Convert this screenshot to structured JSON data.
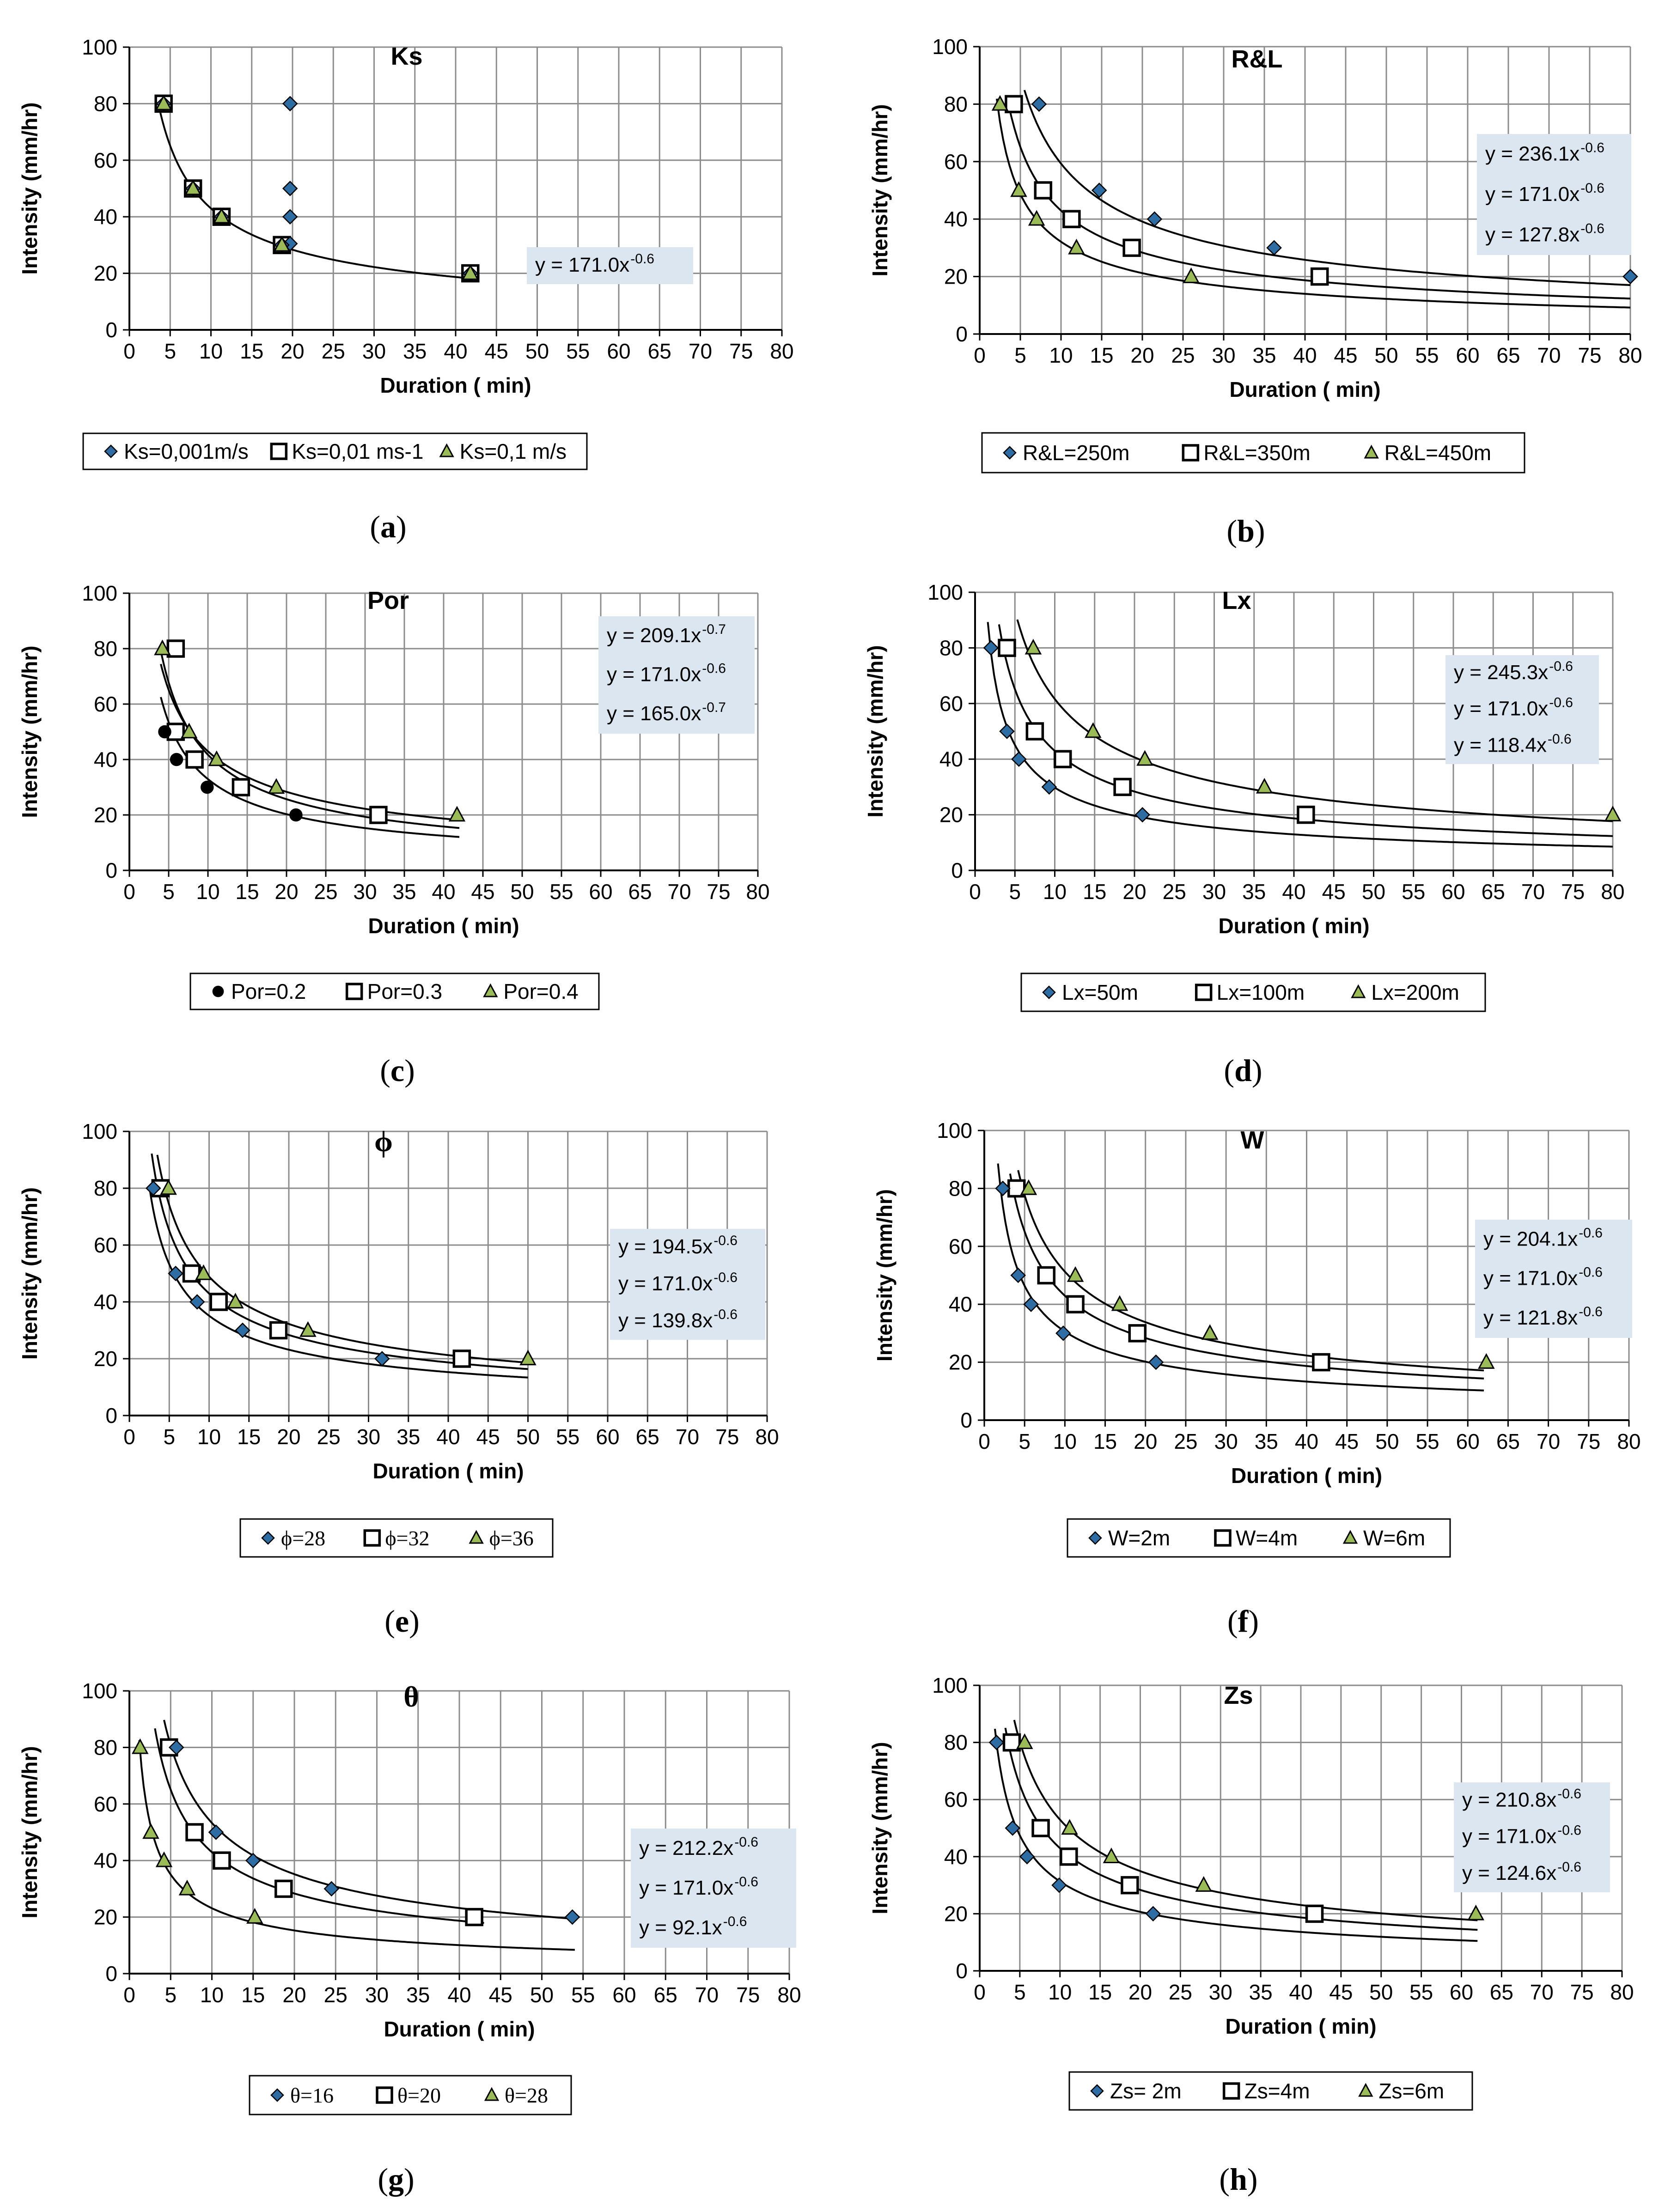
{
  "figure": {
    "background": "#ffffff",
    "grid_color": "#8c8c8c",
    "axis_color": "#000000",
    "fit_color": "#000000",
    "eq_box_color": "#dce6f1",
    "marker_blue": "#2e6da4",
    "marker_green": "#9bbb59"
  },
  "chart_data": [
    {
      "id": "a",
      "type": "scatter",
      "panel_label": "a",
      "title": "Ks",
      "xlabel": "Duration ( min)",
      "ylabel": "Intensity (mm/hr)",
      "xlim": [
        0,
        80
      ],
      "ylim": [
        0,
        100
      ],
      "xstep": 5,
      "ystep": 20,
      "grid": true,
      "legend_position": "bottom",
      "series": [
        {
          "name": "Ks=0,001m/s",
          "marker": "diamond",
          "points": [
            [
              19.7,
              80
            ],
            [
              19.7,
              50
            ],
            [
              19.7,
              40
            ],
            [
              19.7,
              30.5
            ],
            [
              18.7,
              30
            ],
            [
              11.3,
              40
            ],
            [
              7.8,
              50
            ],
            [
              4.2,
              80
            ],
            [
              41.8,
              20
            ]
          ]
        },
        {
          "name": "Ks=0,01 ms-1",
          "marker": "square",
          "points": [
            [
              4.2,
              80
            ],
            [
              7.8,
              50
            ],
            [
              11.3,
              40
            ],
            [
              18.7,
              30
            ],
            [
              41.8,
              20
            ]
          ]
        },
        {
          "name": "Ks=0,1 m/s",
          "marker": "triangle",
          "points": [
            [
              4.2,
              80
            ],
            [
              7.8,
              50
            ],
            [
              11.3,
              40
            ],
            [
              18.7,
              30
            ],
            [
              41.8,
              20
            ]
          ]
        }
      ],
      "fits": [
        {
          "a": 171.0,
          "b": -0.6,
          "xmin": 3.5,
          "xmax": 42
        }
      ],
      "equations": [
        "y = 171.0x",
        "-0.6"
      ],
      "eq_lines": [
        {
          "text": "y = 171.0x",
          "exp": "-0.6"
        }
      ]
    },
    {
      "id": "b",
      "type": "scatter",
      "panel_label": "b",
      "title": "R&L",
      "xlabel": "Duration ( min)",
      "ylabel": "Intensity (mm/hr)",
      "xlim": [
        0,
        80
      ],
      "ylim": [
        0,
        100
      ],
      "xstep": 5,
      "ystep": 20,
      "grid": true,
      "legend_position": "bottom",
      "series": [
        {
          "name": "R&L=250m",
          "marker": "diamond",
          "points": [
            [
              7.3,
              80
            ],
            [
              14.7,
              50
            ],
            [
              21.5,
              40
            ],
            [
              36.2,
              30
            ],
            [
              80,
              20
            ]
          ]
        },
        {
          "name": "R&L=350m",
          "marker": "square",
          "points": [
            [
              4.2,
              80
            ],
            [
              7.8,
              50
            ],
            [
              11.3,
              40
            ],
            [
              18.7,
              30
            ],
            [
              41.8,
              20
            ]
          ]
        },
        {
          "name": "R&L=450m",
          "marker": "triangle",
          "points": [
            [
              2.5,
              80
            ],
            [
              4.8,
              50
            ],
            [
              7,
              40
            ],
            [
              11.9,
              30
            ],
            [
              26,
              20
            ]
          ]
        }
      ],
      "fits": [
        {
          "a": 236.1,
          "b": -0.6,
          "xmin": 5.5,
          "xmax": 80
        },
        {
          "a": 171.0,
          "b": -0.6,
          "xmin": 3.5,
          "xmax": 80
        },
        {
          "a": 127.8,
          "b": -0.6,
          "xmin": 2.1,
          "xmax": 80
        }
      ],
      "eq_lines": [
        {
          "text": "y = 236.1x",
          "exp": "-0.6"
        },
        {
          "text": "y = 171.0x",
          "exp": "-0.6"
        },
        {
          "text": "y = 127.8x",
          "exp": "-0.6"
        }
      ]
    },
    {
      "id": "c",
      "type": "scatter",
      "panel_label": "c",
      "title": "Por",
      "xlabel": "Duration ( min)",
      "ylabel": "Intensity (mm/hr)",
      "xlim": [
        0,
        80
      ],
      "ylim": [
        0,
        100
      ],
      "xstep": 5,
      "ystep": 20,
      "grid": true,
      "legend_position": "bottom",
      "series": [
        {
          "name": "Por=0.2",
          "marker": "circle",
          "points": [
            [
              4.5,
              50
            ],
            [
              6,
              40
            ],
            [
              9.9,
              30
            ],
            [
              21.2,
              20
            ]
          ]
        },
        {
          "name": "Por=0.3",
          "marker": "square",
          "points": [
            [
              5.9,
              80
            ],
            [
              5.9,
              50
            ],
            [
              8.3,
              40
            ],
            [
              14.2,
              30
            ],
            [
              31.7,
              20
            ]
          ]
        },
        {
          "name": "Por=0.4",
          "marker": "triangle",
          "points": [
            [
              4.2,
              80
            ],
            [
              7.6,
              50
            ],
            [
              11.1,
              40
            ],
            [
              18.7,
              30
            ],
            [
              41.7,
              20
            ]
          ]
        }
      ],
      "fits": [
        {
          "a": 209.1,
          "b": -0.7,
          "xmin": 4,
          "xmax": 42
        },
        {
          "a": 171.0,
          "b": -0.6,
          "xmin": 4,
          "xmax": 42
        },
        {
          "a": 165.0,
          "b": -0.7,
          "xmin": 4,
          "xmax": 42
        }
      ],
      "eq_lines": [
        {
          "text": "y = 209.1x",
          "exp": "-0.7"
        },
        {
          "text": "y = 171.0x",
          "exp": "-0.6"
        },
        {
          "text": "y = 165.0x",
          "exp": "-0.7"
        }
      ]
    },
    {
      "id": "d",
      "type": "scatter",
      "panel_label": "d",
      "title": "Lx",
      "xlabel": "Duration ( min)",
      "ylabel": "Intensity (mm/hr)",
      "xlim": [
        0,
        80
      ],
      "ylim": [
        0,
        100
      ],
      "xstep": 5,
      "ystep": 20,
      "grid": true,
      "legend_position": "bottom",
      "series": [
        {
          "name": "Lx=50m",
          "marker": "diamond",
          "points": [
            [
              2,
              80
            ],
            [
              4,
              50
            ],
            [
              5.5,
              40
            ],
            [
              9.3,
              30
            ],
            [
              21,
              20
            ]
          ]
        },
        {
          "name": "Lx=100m",
          "marker": "square",
          "points": [
            [
              4,
              80
            ],
            [
              7.5,
              50
            ],
            [
              11,
              40
            ],
            [
              18.5,
              30
            ],
            [
              41.5,
              20
            ]
          ]
        },
        {
          "name": "Lx=200m",
          "marker": "triangle",
          "points": [
            [
              7.3,
              80
            ],
            [
              14.8,
              50
            ],
            [
              21.3,
              40
            ],
            [
              36.3,
              30
            ],
            [
              80,
              20
            ]
          ]
        }
      ],
      "fits": [
        {
          "a": 245.3,
          "b": -0.6,
          "xmin": 5.3,
          "xmax": 80
        },
        {
          "a": 171.0,
          "b": -0.6,
          "xmin": 3,
          "xmax": 80
        },
        {
          "a": 118.4,
          "b": -0.6,
          "xmin": 1.6,
          "xmax": 80
        }
      ],
      "eq_lines": [
        {
          "text": "y = 245.3x",
          "exp": "-0.6"
        },
        {
          "text": "y = 171.0x",
          "exp": "-0.6"
        },
        {
          "text": "y = 118.4x",
          "exp": "-0.6"
        }
      ]
    },
    {
      "id": "e",
      "type": "scatter",
      "panel_label": "e",
      "title": "ϕ",
      "xlabel": "Duration ( min)",
      "ylabel": "Intensity (mm/hr)",
      "xlim": [
        0,
        80
      ],
      "ylim": [
        0,
        100
      ],
      "xstep": 5,
      "ystep": 20,
      "grid": true,
      "legend_position": "bottom",
      "series": [
        {
          "name": "ϕ=28",
          "marker": "diamond",
          "points": [
            [
              3,
              80
            ],
            [
              5.8,
              50
            ],
            [
              8.5,
              40
            ],
            [
              14.2,
              30
            ],
            [
              31.7,
              20
            ]
          ]
        },
        {
          "name": "ϕ=32",
          "marker": "square",
          "points": [
            [
              3.9,
              80
            ],
            [
              7.8,
              50
            ],
            [
              11.2,
              40
            ],
            [
              18.7,
              30
            ],
            [
              41.7,
              20
            ]
          ]
        },
        {
          "name": "ϕ=36",
          "marker": "triangle",
          "points": [
            [
              4.9,
              80
            ],
            [
              9.3,
              50
            ],
            [
              13.3,
              40
            ],
            [
              22.4,
              30
            ],
            [
              50,
              20
            ]
          ]
        }
      ],
      "fits": [
        {
          "a": 194.5,
          "b": -0.6,
          "xmin": 3.5,
          "xmax": 50
        },
        {
          "a": 171.0,
          "b": -0.6,
          "xmin": 2.8,
          "xmax": 50
        },
        {
          "a": 139.8,
          "b": -0.6,
          "xmin": 2.5,
          "xmax": 50
        }
      ],
      "eq_lines": [
        {
          "text": "y = 194.5x",
          "exp": "-0.6"
        },
        {
          "text": "y = 171.0x",
          "exp": "-0.6"
        },
        {
          "text": "y = 139.8x",
          "exp": "-0.6"
        }
      ]
    },
    {
      "id": "f",
      "type": "scatter",
      "panel_label": "f",
      "title": "W",
      "xlabel": "Duration ( min)",
      "ylabel": "Intensity (mm/hr)",
      "xlim": [
        0,
        80
      ],
      "ylim": [
        0,
        100
      ],
      "xstep": 5,
      "ystep": 20,
      "grid": true,
      "legend_position": "bottom",
      "series": [
        {
          "name": "W=2m",
          "marker": "diamond",
          "points": [
            [
              2.3,
              80
            ],
            [
              4.2,
              50
            ],
            [
              5.8,
              40
            ],
            [
              9.8,
              30
            ],
            [
              21.3,
              20
            ]
          ]
        },
        {
          "name": "W=4m",
          "marker": "square",
          "points": [
            [
              4,
              80
            ],
            [
              7.7,
              50
            ],
            [
              11.3,
              40
            ],
            [
              19,
              30
            ],
            [
              41.8,
              20
            ]
          ]
        },
        {
          "name": "W=6m",
          "marker": "triangle",
          "points": [
            [
              5.5,
              80
            ],
            [
              11.3,
              50
            ],
            [
              16.8,
              40
            ],
            [
              28,
              30
            ],
            [
              62.3,
              20
            ]
          ]
        }
      ],
      "fits": [
        {
          "a": 204.1,
          "b": -0.6,
          "xmin": 4.2,
          "xmax": 62
        },
        {
          "a": 171.0,
          "b": -0.6,
          "xmin": 3.2,
          "xmax": 62
        },
        {
          "a": 121.8,
          "b": -0.6,
          "xmin": 1.7,
          "xmax": 62
        }
      ],
      "eq_lines": [
        {
          "text": "y = 204.1x",
          "exp": "-0.6"
        },
        {
          "text": "y = 171.0x",
          "exp": "-0.6"
        },
        {
          "text": "y = 121.8x",
          "exp": "-0.6"
        }
      ]
    },
    {
      "id": "g",
      "type": "scatter",
      "panel_label": "g",
      "title": "θ",
      "xlabel": "Duration ( min)",
      "ylabel": "Intensity (mm/hr)",
      "xlim": [
        0,
        80
      ],
      "ylim": [
        0,
        100
      ],
      "xstep": 5,
      "ystep": 20,
      "grid": true,
      "legend_position": "bottom",
      "series": [
        {
          "name": "θ=16",
          "marker": "diamond",
          "points": [
            [
              5.7,
              80
            ],
            [
              10.5,
              50
            ],
            [
              15,
              40
            ],
            [
              24.5,
              30
            ],
            [
              53.7,
              20
            ]
          ]
        },
        {
          "name": "θ=20",
          "marker": "square",
          "points": [
            [
              4.8,
              80
            ],
            [
              7.9,
              50
            ],
            [
              11.2,
              40
            ],
            [
              18.7,
              30
            ],
            [
              41.8,
              20
            ]
          ]
        },
        {
          "name": "θ=28",
          "marker": "triangle",
          "points": [
            [
              1.3,
              80
            ],
            [
              2.6,
              50
            ],
            [
              4.2,
              40
            ],
            [
              7,
              30
            ],
            [
              15.2,
              20
            ]
          ]
        }
      ],
      "fits": [
        {
          "a": 212.2,
          "b": -0.6,
          "xmin": 4.2,
          "xmax": 54
        },
        {
          "a": 171.0,
          "b": -0.6,
          "xmin": 3.1,
          "xmax": 43
        },
        {
          "a": 92.1,
          "b": -0.6,
          "xmin": 1.2,
          "xmax": 54
        }
      ],
      "eq_lines": [
        {
          "text": "y = 212.2x",
          "exp": "-0.6"
        },
        {
          "text": "y = 171.0x",
          "exp": "-0.6"
        },
        {
          "text": "y = 92.1x",
          "exp": "-0.6"
        }
      ]
    },
    {
      "id": "h",
      "type": "scatter",
      "panel_label": "h",
      "title": "Zs",
      "xlabel": "Duration ( min)",
      "ylabel": "Intensity (mm/hr)",
      "xlim": [
        0,
        80
      ],
      "ylim": [
        0,
        100
      ],
      "xstep": 5,
      "ystep": 20,
      "grid": true,
      "legend_position": "bottom",
      "series": [
        {
          "name": "Zs= 2m",
          "marker": "diamond",
          "points": [
            [
              2.1,
              80
            ],
            [
              4.1,
              50
            ],
            [
              5.9,
              40
            ],
            [
              9.9,
              30
            ],
            [
              21.6,
              20
            ]
          ]
        },
        {
          "name": "Zs=4m",
          "marker": "square",
          "points": [
            [
              4,
              80
            ],
            [
              7.6,
              50
            ],
            [
              11.1,
              40
            ],
            [
              18.7,
              30
            ],
            [
              41.7,
              20
            ]
          ]
        },
        {
          "name": "Zs=6m",
          "marker": "triangle",
          "points": [
            [
              5.6,
              80
            ],
            [
              11.2,
              50
            ],
            [
              16.4,
              40
            ],
            [
              27.9,
              30
            ],
            [
              61.8,
              20
            ]
          ]
        }
      ],
      "fits": [
        {
          "a": 210.8,
          "b": -0.6,
          "xmin": 4.3,
          "xmax": 62
        },
        {
          "a": 171.0,
          "b": -0.6,
          "xmin": 3.2,
          "xmax": 62
        },
        {
          "a": 124.6,
          "b": -0.6,
          "xmin": 1.9,
          "xmax": 62
        }
      ],
      "eq_lines": [
        {
          "text": "y = 210.8x",
          "exp": "-0.6"
        },
        {
          "text": "y = 171.0x",
          "exp": "-0.6"
        },
        {
          "text": "y = 124.6x",
          "exp": "-0.6"
        }
      ]
    }
  ]
}
